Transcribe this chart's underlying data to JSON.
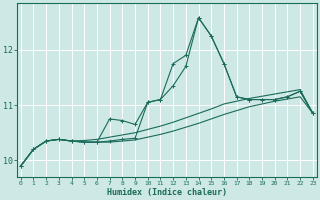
{
  "xlabel": "Humidex (Indice chaleur)",
  "bg_color": "#cde8e5",
  "grid_color": "#ffffff",
  "line_color": "#1a6b5a",
  "red_line_color": "#cc4444",
  "red_line_y": 11.0,
  "x_values": [
    0,
    1,
    2,
    3,
    4,
    5,
    6,
    7,
    8,
    9,
    10,
    11,
    12,
    13,
    14,
    15,
    16,
    17,
    18,
    19,
    20,
    21,
    22,
    23
  ],
  "series": [
    [
      9.9,
      10.2,
      10.35,
      10.38,
      10.35,
      10.33,
      10.33,
      10.35,
      10.38,
      10.4,
      11.05,
      11.1,
      11.75,
      11.9,
      12.58,
      12.25,
      11.75,
      11.15,
      11.1,
      11.1,
      11.1,
      11.15,
      11.25,
      10.85
    ],
    [
      9.9,
      10.2,
      10.35,
      10.38,
      10.35,
      10.33,
      10.33,
      10.75,
      10.72,
      10.65,
      11.05,
      11.1,
      11.35,
      11.7,
      12.58,
      12.25,
      11.75,
      11.15,
      11.1,
      11.1,
      11.1,
      11.15,
      11.25,
      10.85
    ],
    [
      9.9,
      10.2,
      10.35,
      10.38,
      10.35,
      10.36,
      10.38,
      10.42,
      10.46,
      10.5,
      10.56,
      10.62,
      10.69,
      10.77,
      10.85,
      10.93,
      11.02,
      11.07,
      11.12,
      11.16,
      11.2,
      11.24,
      11.28,
      10.85
    ],
    [
      9.9,
      10.2,
      10.35,
      10.38,
      10.35,
      10.33,
      10.33,
      10.33,
      10.35,
      10.37,
      10.42,
      10.47,
      10.53,
      10.6,
      10.67,
      10.75,
      10.83,
      10.9,
      10.97,
      11.02,
      11.07,
      11.11,
      11.15,
      10.85
    ]
  ],
  "ylim": [
    9.7,
    12.85
  ],
  "yticks": [
    10,
    11,
    12
  ],
  "xticks": [
    0,
    1,
    2,
    3,
    4,
    5,
    6,
    7,
    8,
    9,
    10,
    11,
    12,
    13,
    14,
    15,
    16,
    17,
    18,
    19,
    20,
    21,
    22,
    23
  ]
}
